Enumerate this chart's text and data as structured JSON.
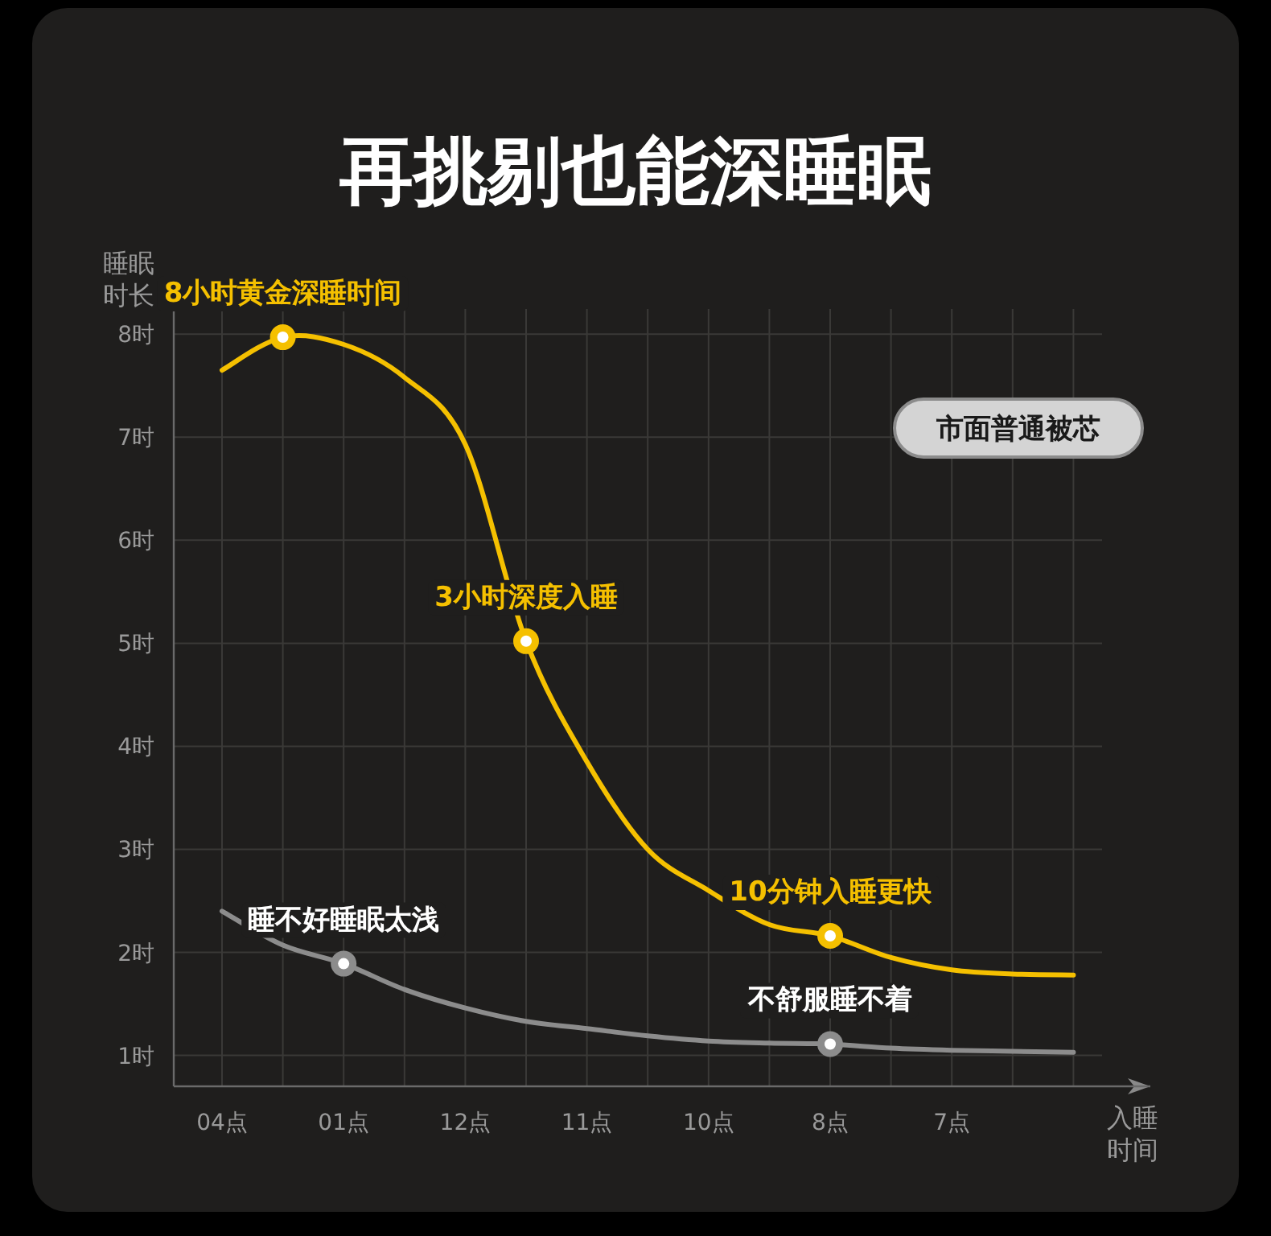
{
  "chart_data": {
    "type": "line",
    "title": "再挑剔也能深睡眠",
    "ylabel": "睡眠时长",
    "xlabel": "入睡时间",
    "categories": [
      "04点",
      null,
      "01点",
      null,
      "12点",
      null,
      "11点",
      null,
      "10点",
      null,
      "8点",
      null,
      "7点",
      null,
      null
    ],
    "ylim": [
      0.7,
      8.4
    ],
    "yticks": [
      {
        "value": 1,
        "label": "1时"
      },
      {
        "value": 2,
        "label": "2时"
      },
      {
        "value": 3,
        "label": "3时"
      },
      {
        "value": 4,
        "label": "4时"
      },
      {
        "value": 5,
        "label": "5时"
      },
      {
        "value": 6,
        "label": "6时"
      },
      {
        "value": 7,
        "label": "7时"
      },
      {
        "value": 8,
        "label": "8时"
      }
    ],
    "grid": true,
    "legend": "top right",
    "marker": "none",
    "line_style": "solid",
    "series": [
      {
        "color": "#f5c000",
        "values": [
          7.65,
          7.97,
          7.9,
          7.58,
          6.93,
          5.02,
          3.85,
          3.0,
          2.6,
          2.27,
          2.16,
          1.95,
          1.83,
          1.79,
          1.78
        ]
      },
      {
        "name": "市面普通被芯",
        "color": "#8c8c8c",
        "values": [
          2.4,
          2.07,
          1.89,
          1.64,
          1.46,
          1.33,
          1.26,
          1.19,
          1.14,
          1.12,
          1.11,
          1.07,
          1.05,
          1.04,
          1.03
        ]
      }
    ],
    "annotations": [
      {
        "text": "8小时黄金深睡时间",
        "y": 7.97
      },
      {
        "text": "3小时深度入睡",
        "y": 5.02
      },
      {
        "text": "10分钟入睡更快",
        "x": "8点",
        "y": 2.16
      },
      {
        "text": "睡不好睡眠太浅",
        "x": "01点",
        "y": 1.89
      },
      {
        "text": "不舒服睡不着",
        "x": "8点",
        "y": 1.11
      }
    ]
  }
}
